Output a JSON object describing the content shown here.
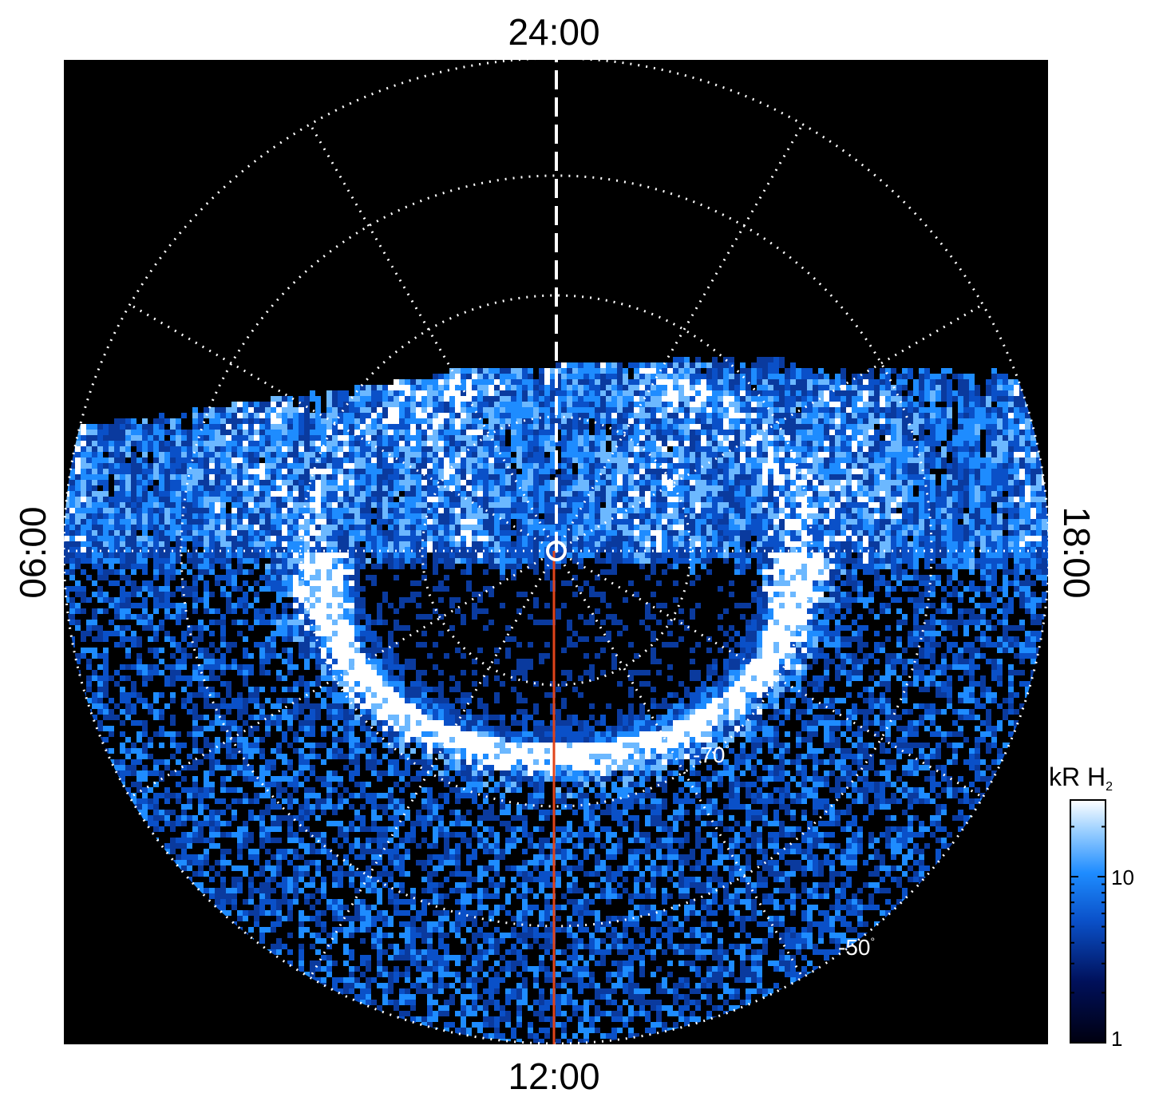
{
  "labels": {
    "top": "24:00",
    "bottom": "12:00",
    "left": "06:00",
    "right": "18:00",
    "lat_inner": "-70",
    "lat_outer": "-50",
    "degree": "°"
  },
  "colorbar": {
    "unit_main": "kR H",
    "unit_sub": "2",
    "tick_high": "10",
    "tick_low": "1",
    "colors": [
      "#000010",
      "#00105a",
      "#0a50c8",
      "#1e8cff",
      "#a0d2ff",
      "#ffffff"
    ]
  },
  "colors": {
    "background": "#000000",
    "grid": "#ffffff",
    "meridian_line": "#e0441a"
  }
}
